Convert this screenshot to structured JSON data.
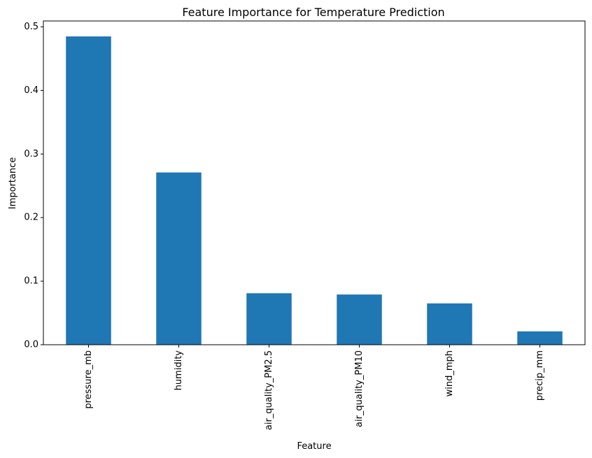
{
  "chart_data": {
    "type": "bar",
    "title": "Feature Importance for Temperature Prediction",
    "xlabel": "Feature",
    "ylabel": "Importance",
    "categories": [
      "pressure_mb",
      "humidity",
      "air_quality_PM2.5",
      "air_quality_PM10",
      "wind_mph",
      "precip_mm"
    ],
    "values": [
      0.485,
      0.271,
      0.081,
      0.079,
      0.065,
      0.021
    ],
    "ylim": [
      0,
      0.5093
    ],
    "yticks": [
      0.0,
      0.1,
      0.2,
      0.3,
      0.4,
      0.5
    ],
    "ytick_labels": [
      "0.0",
      "0.1",
      "0.2",
      "0.3",
      "0.4",
      "0.5"
    ],
    "bar_color": "#1f77b4",
    "grid": false,
    "legend": false
  }
}
